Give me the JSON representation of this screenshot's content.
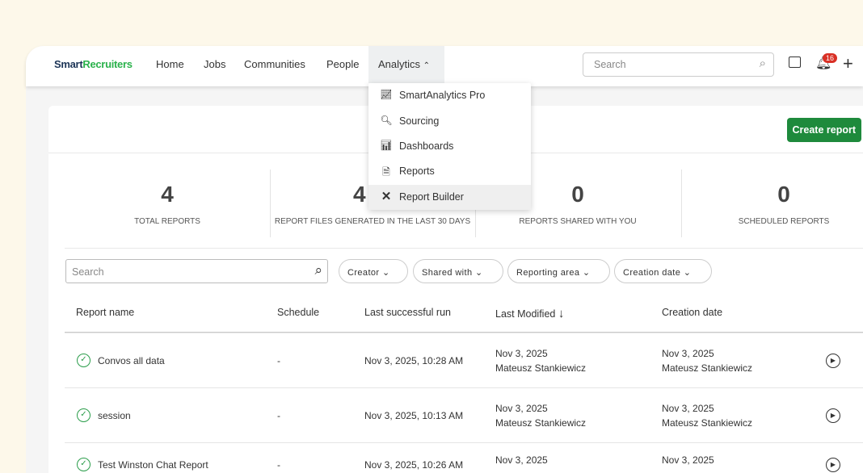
{
  "header": {
    "logo_a": "Smart",
    "logo_b": "Recruiters",
    "nav": [
      "Home",
      "Jobs",
      "Communities",
      "People"
    ],
    "active_nav": "Analytics",
    "search_placeholder": "Search",
    "notification_count": "16"
  },
  "analytics_menu": [
    {
      "label": "SmartAnalytics Pro",
      "icon": "analytics-chart-icon"
    },
    {
      "label": "Sourcing",
      "icon": "sourcing-icon"
    },
    {
      "label": "Dashboards",
      "icon": "dashboard-icon"
    },
    {
      "label": "Reports",
      "icon": "document-icon"
    },
    {
      "label": "Report Builder",
      "icon": "tools-icon",
      "highlighted": true
    }
  ],
  "main": {
    "create_button": "Create report",
    "stats": [
      {
        "value": "4",
        "label": "TOTAL REPORTS"
      },
      {
        "value": "4",
        "label": "REPORT FILES GENERATED IN THE LAST 30 DAYS"
      },
      {
        "value": "0",
        "label": "REPORTS SHARED WITH YOU"
      },
      {
        "value": "0",
        "label": "SCHEDULED REPORTS"
      }
    ],
    "search_placeholder": "Search",
    "filters": [
      "Creator",
      "Shared with",
      "Reporting area",
      "Creation date"
    ],
    "columns": [
      "Report name",
      "Schedule",
      "Last successful run",
      "Last Modified",
      "Creation date"
    ],
    "rows": [
      {
        "name": "Convos all data",
        "schedule": "-",
        "last_run": "Nov 3, 2025, 10:28 AM",
        "modified_date": "Nov 3, 2025",
        "modified_by": "Mateusz Stankiewicz",
        "created_date": "Nov 3, 2025",
        "created_by": "Mateusz Stankiewicz"
      },
      {
        "name": "session",
        "schedule": "-",
        "last_run": "Nov 3, 2025, 10:13 AM",
        "modified_date": "Nov 3, 2025",
        "modified_by": "Mateusz Stankiewicz",
        "created_date": "Nov 3, 2025",
        "created_by": "Mateusz Stankiewicz"
      },
      {
        "name": "Test Winston Chat Report",
        "schedule": "-",
        "last_run": "Nov 3, 2025, 10:26 AM",
        "modified_date": "Nov 3, 2025",
        "modified_by": "",
        "created_date": "Nov 3, 2025",
        "created_by": ""
      }
    ]
  },
  "colors": {
    "accent": "#1e8a3c",
    "badge": "#d93025",
    "background": "#fdf8ea"
  }
}
